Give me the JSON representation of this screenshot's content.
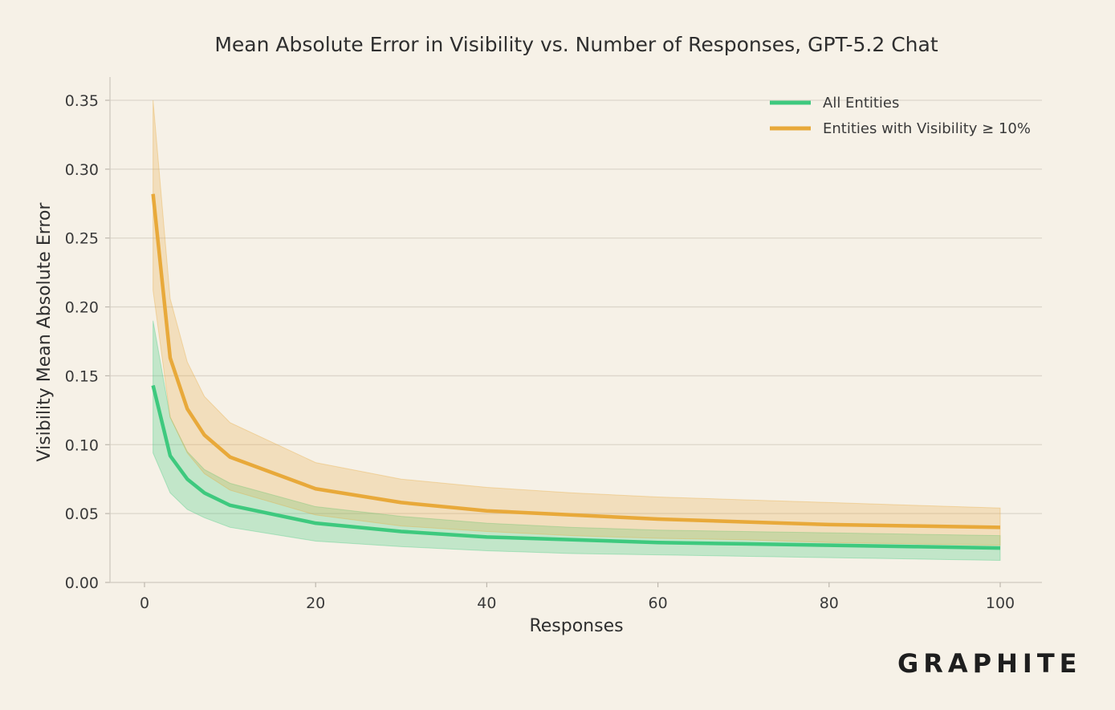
{
  "chart_data": {
    "type": "line",
    "title": "Mean Absolute Error in Visibility vs. Number of Responses, GPT-5.2 Chat",
    "xlabel": "Responses",
    "ylabel": "Visibility Mean Absolute Error",
    "xlim": [
      -4,
      105
    ],
    "ylim": [
      0,
      0.36
    ],
    "xticks": [
      0,
      20,
      40,
      60,
      80,
      100
    ],
    "xtick_labels": [
      "0",
      "20",
      "40",
      "60",
      "80",
      "100"
    ],
    "yticks": [
      0,
      0.05,
      0.1,
      0.15,
      0.2,
      0.25,
      0.3,
      0.35
    ],
    "ytick_labels": [
      "0.00",
      "0.05",
      "0.10",
      "0.15",
      "0.20",
      "0.25",
      "0.30",
      "0.35"
    ],
    "grid": "horizontal",
    "legend_position": "top-right",
    "x": [
      1,
      3,
      5,
      7,
      10,
      20,
      30,
      40,
      50,
      60,
      70,
      80,
      90,
      100
    ],
    "series": [
      {
        "name": "All Entities",
        "color": "#3ec97e",
        "values": [
          0.143,
          0.092,
          0.075,
          0.065,
          0.056,
          0.043,
          0.037,
          0.033,
          0.031,
          0.029,
          0.028,
          0.027,
          0.026,
          0.025
        ],
        "band_upper": [
          0.19,
          0.12,
          0.095,
          0.082,
          0.072,
          0.055,
          0.048,
          0.043,
          0.04,
          0.038,
          0.037,
          0.036,
          0.035,
          0.034
        ],
        "band_lower": [
          0.094,
          0.065,
          0.053,
          0.047,
          0.04,
          0.03,
          0.026,
          0.023,
          0.021,
          0.02,
          0.019,
          0.018,
          0.017,
          0.016
        ]
      },
      {
        "name": "Entities with Visibility ≥ 10%",
        "color": "#e8a93a",
        "values": [
          0.282,
          0.163,
          0.126,
          0.107,
          0.091,
          0.068,
          0.058,
          0.052,
          0.049,
          0.046,
          0.044,
          0.042,
          0.041,
          0.04
        ],
        "band_upper": [
          0.35,
          0.206,
          0.16,
          0.135,
          0.116,
          0.087,
          0.075,
          0.069,
          0.065,
          0.062,
          0.06,
          0.058,
          0.056,
          0.054
        ],
        "band_lower": [
          0.212,
          0.12,
          0.094,
          0.079,
          0.067,
          0.049,
          0.041,
          0.037,
          0.034,
          0.032,
          0.031,
          0.029,
          0.028,
          0.027
        ]
      }
    ]
  },
  "brand": {
    "logo_text": "GRAPHITE"
  }
}
